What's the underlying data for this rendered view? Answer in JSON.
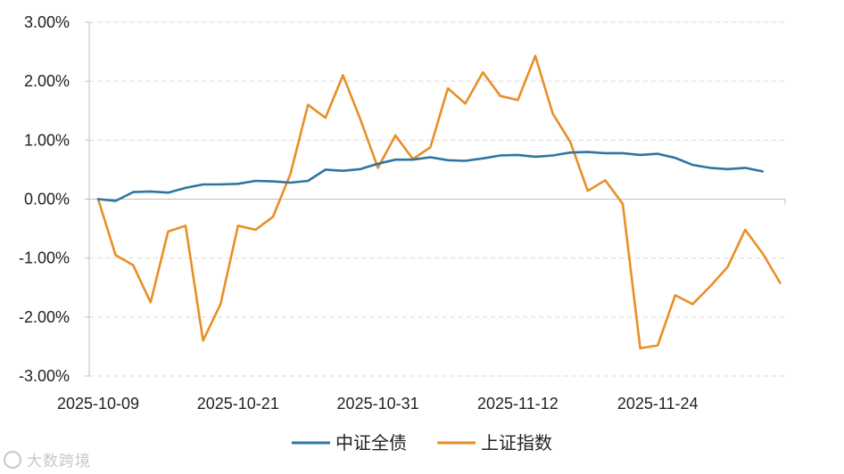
{
  "chart_data": {
    "type": "line",
    "title": "",
    "xlabel": "",
    "ylabel": "",
    "ylim": [
      -0.03,
      0.03
    ],
    "yticks": [
      0.03,
      0.02,
      0.01,
      0.0,
      -0.01,
      -0.02,
      -0.03
    ],
    "ytick_labels": [
      "3.00%",
      "2.00%",
      "1.00%",
      "0.00%",
      "-1.00%",
      "-2.00%",
      "-3.00%"
    ],
    "x": [
      "2025-10-09",
      "2025-10-10",
      "2025-10-13",
      "2025-10-14",
      "2025-10-15",
      "2025-10-16",
      "2025-10-17",
      "2025-10-20",
      "2025-10-21",
      "2025-10-22",
      "2025-10-23",
      "2025-10-24",
      "2025-10-27",
      "2025-10-28",
      "2025-10-29",
      "2025-10-30",
      "2025-10-31",
      "2025-11-03",
      "2025-11-04",
      "2025-11-05",
      "2025-11-06",
      "2025-11-07",
      "2025-11-10",
      "2025-11-11",
      "2025-11-12",
      "2025-11-13",
      "2025-11-14",
      "2025-11-17",
      "2025-11-18",
      "2025-11-19",
      "2025-11-20",
      "2025-11-21",
      "2025-11-24",
      "2025-11-25",
      "2025-11-26",
      "2025-11-27",
      "2025-11-28",
      "2025-12-01",
      "2025-12-02",
      "2025-12-03"
    ],
    "xtick_labels": [
      "2025-10-09",
      "2025-10-21",
      "2025-10-31",
      "2025-11-12",
      "2025-11-24"
    ],
    "series": [
      {
        "name": "中证全债",
        "color": "#2e75a0",
        "values": [
          0.0,
          -0.0003,
          0.0012,
          0.0013,
          0.0011,
          0.0019,
          0.0025,
          0.0025,
          0.0026,
          0.0031,
          0.003,
          0.0028,
          0.0031,
          0.005,
          0.0048,
          0.0051,
          0.006,
          0.0067,
          0.0067,
          0.0071,
          0.0066,
          0.0065,
          0.0069,
          0.0074,
          0.0075,
          0.0072,
          0.0074,
          0.0079,
          0.008,
          0.0078,
          0.0078,
          0.0075,
          0.0077,
          0.007,
          0.0058,
          0.0053,
          0.0051,
          0.0053,
          0.0047,
          null
        ]
      },
      {
        "name": "上证指数",
        "color": "#e88f26",
        "values": [
          0.0,
          -0.0095,
          -0.0112,
          -0.0175,
          -0.0055,
          -0.0045,
          -0.024,
          -0.0178,
          -0.0045,
          -0.0052,
          -0.003,
          0.0043,
          0.016,
          0.0138,
          0.021,
          0.0135,
          0.0053,
          0.0108,
          0.0068,
          0.0088,
          0.0188,
          0.0162,
          0.0215,
          0.0175,
          0.0168,
          0.0243,
          0.0145,
          0.0097,
          0.0014,
          0.0032,
          -0.0008,
          -0.0253,
          -0.0248,
          -0.0163,
          -0.0178,
          -0.0148,
          -0.0115,
          -0.0052,
          -0.0092,
          -0.0142
        ]
      }
    ],
    "grid": true,
    "legend_position": "bottom-center"
  },
  "watermark": {
    "text": "大数跨境"
  }
}
